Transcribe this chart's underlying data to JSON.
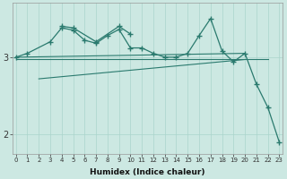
{
  "xlabel": "Humidex (Indice chaleur)",
  "background_color": "#cce8e2",
  "grid_color": "#aad4cc",
  "line_color": "#2a7a6e",
  "x_values": [
    0,
    1,
    2,
    3,
    4,
    5,
    6,
    7,
    8,
    9,
    10,
    11,
    12,
    13,
    14,
    15,
    16,
    17,
    18,
    19,
    20,
    21,
    22,
    23
  ],
  "series_main": [
    3.0,
    3.05,
    null,
    3.2,
    3.38,
    3.35,
    3.22,
    3.18,
    3.28,
    3.36,
    3.12,
    3.12,
    3.05,
    3.0,
    3.0,
    3.05,
    3.28,
    3.5,
    3.08,
    2.94,
    3.05,
    2.65,
    2.35,
    1.9
  ],
  "series_upper_peak": [
    null,
    null,
    null,
    null,
    3.4,
    3.38,
    null,
    3.2,
    null,
    3.4,
    3.3,
    null,
    null,
    null,
    null,
    null,
    null,
    null,
    null,
    null,
    null,
    null,
    null,
    null
  ],
  "trend1_x": [
    0,
    20
  ],
  "trend1_y": [
    3.0,
    3.05
  ],
  "trend2_x": [
    2,
    20
  ],
  "trend2_y": [
    2.72,
    2.97
  ],
  "trend3_x": [
    0,
    22
  ],
  "trend3_y": [
    2.98,
    2.98
  ],
  "ylim": [
    1.75,
    3.7
  ],
  "xlim": [
    -0.3,
    23.3
  ],
  "yticks": [
    2,
    3
  ],
  "xticks": [
    0,
    1,
    2,
    3,
    4,
    5,
    6,
    7,
    8,
    9,
    10,
    11,
    12,
    13,
    14,
    15,
    16,
    17,
    18,
    19,
    20,
    21,
    22,
    23
  ]
}
